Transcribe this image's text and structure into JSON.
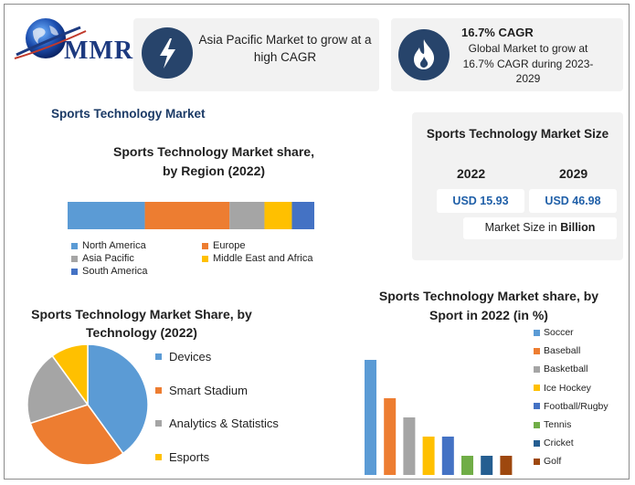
{
  "brand": {
    "name": "MMR"
  },
  "cards": {
    "left": {
      "text": "Asia Pacific Market to grow at a high CAGR",
      "icon": "lightning-icon"
    },
    "right": {
      "title": "16.7% CAGR",
      "text": "Global Market to grow at 16.7% CAGR during 2023-2029",
      "icon": "flame-icon"
    }
  },
  "page_title": "Sports Technology Market",
  "market_size": {
    "title": "Sports Technology Market Size",
    "year1": "2022",
    "year2": "2029",
    "value1": "USD 15.93",
    "value2": "USD 46.98",
    "note_prefix": "Market Size in ",
    "note_bold": "Billion"
  },
  "colors": {
    "navy": "#27446b",
    "value_blue": "#1f5fa8"
  },
  "chart_data": [
    {
      "type": "bar",
      "orientation": "horizontal-stacked",
      "title": "Sports Technology Market share, by Region (2022)",
      "categories": [
        "North America",
        "Europe",
        "Asia Pacific",
        "Middle East and Africa",
        "South America"
      ],
      "values": [
        31,
        34,
        14,
        11,
        9
      ],
      "colors": [
        "#5b9bd5",
        "#ed7d31",
        "#a5a5a5",
        "#ffc000",
        "#4472c4"
      ]
    },
    {
      "type": "pie",
      "title": "Sports Technology Market Share, by Technology (2022)",
      "categories": [
        "Devices",
        "Smart Stadium",
        "Analytics & Statistics",
        "Esports"
      ],
      "values": [
        40,
        30,
        20,
        10
      ],
      "colors": [
        "#5b9bd5",
        "#ed7d31",
        "#a5a5a5",
        "#ffc000"
      ]
    },
    {
      "type": "bar",
      "title": "Sports Technology Market share, by Sport in 2022 (in %)",
      "categories": [
        "Soccer",
        "Baseball",
        "Basketball",
        "Ice Hockey",
        "Football/Rugby",
        "Tennis",
        "Cricket",
        "Golf"
      ],
      "values": [
        30,
        20,
        15,
        10,
        10,
        5,
        5,
        5
      ],
      "colors": [
        "#5b9bd5",
        "#ed7d31",
        "#a5a5a5",
        "#ffc000",
        "#4472c4",
        "#70ad47",
        "#255e91",
        "#9e480e"
      ]
    }
  ]
}
